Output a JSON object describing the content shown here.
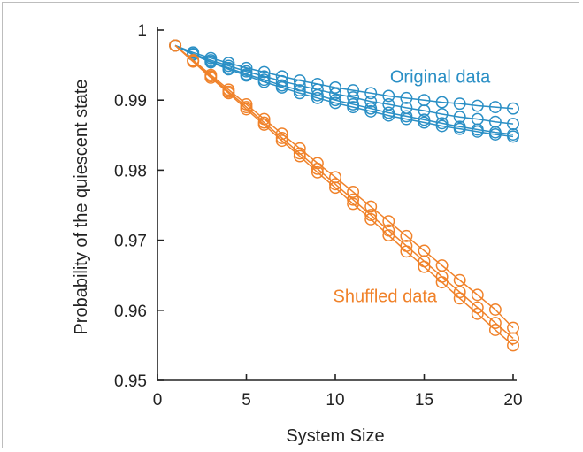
{
  "chart_data": {
    "type": "scatter",
    "title": "",
    "xlabel": "System Size",
    "ylabel": "Probability of the quiescent state",
    "xlim": [
      0,
      20
    ],
    "ylim": [
      0.95,
      1.0
    ],
    "x_ticks": [
      0,
      5,
      10,
      15,
      20
    ],
    "y_ticks": [
      0.95,
      0.96,
      0.97,
      0.98,
      0.99,
      1
    ],
    "y_tick_labels": [
      "0.95",
      "0.96",
      "0.97",
      "0.98",
      "0.99",
      "1"
    ],
    "grid": false,
    "marker": "open-circle",
    "x": [
      1,
      2,
      3,
      4,
      5,
      6,
      7,
      8,
      9,
      10,
      11,
      12,
      13,
      14,
      15,
      16,
      17,
      18,
      19,
      20
    ],
    "groups": [
      {
        "label": "Original data",
        "color": "#2a8fc5",
        "label_pos": [
          15.9,
          0.9925
        ],
        "series": [
          {
            "values": [
              0.9978,
              0.9968,
              0.996,
              0.9953,
              0.9946,
              0.994,
              0.9934,
              0.9928,
              0.9923,
              0.9918,
              0.9914,
              0.991,
              0.9906,
              0.9903,
              0.99,
              0.9897,
              0.9895,
              0.9892,
              0.989,
              0.9888
            ]
          },
          {
            "values": [
              0.9978,
              0.9966,
              0.9957,
              0.9949,
              0.9941,
              0.9934,
              0.9927,
              0.9921,
              0.9915,
              0.9909,
              0.9904,
              0.9898,
              0.9894,
              0.9889,
              0.9885,
              0.988,
              0.9876,
              0.9873,
              0.9869,
              0.9866
            ]
          },
          {
            "values": [
              0.9978,
              0.9965,
              0.9955,
              0.9946,
              0.9937,
              0.9929,
              0.9921,
              0.9914,
              0.9907,
              0.99,
              0.9894,
              0.9888,
              0.9882,
              0.9877,
              0.9872,
              0.9867,
              0.9862,
              0.9858,
              0.9854,
              0.9851
            ]
          },
          {
            "values": [
              0.9978,
              0.9965,
              0.9954,
              0.9944,
              0.9935,
              0.9926,
              0.9918,
              0.991,
              0.9903,
              0.9896,
              0.989,
              0.9884,
              0.9878,
              0.9873,
              0.9868,
              0.9863,
              0.9859,
              0.9855,
              0.9851,
              0.9848
            ]
          }
        ]
      },
      {
        "label": "Shuffled data",
        "color": "#f0822a",
        "label_pos": [
          12.8,
          0.9612
        ],
        "series": [
          {
            "values": [
              0.9978,
              0.9957,
              0.9936,
              0.9915,
              0.9894,
              0.9873,
              0.9852,
              0.9831,
              0.981,
              0.979,
              0.9769,
              0.9748,
              0.9727,
              0.9706,
              0.9685,
              0.9664,
              0.9643,
              0.9622,
              0.9601,
              0.9575
            ]
          },
          {
            "values": [
              0.9978,
              0.9956,
              0.9934,
              0.9912,
              0.989,
              0.9868,
              0.9846,
              0.9824,
              0.9802,
              0.978,
              0.9758,
              0.9736,
              0.9714,
              0.9692,
              0.967,
              0.9648,
              0.9626,
              0.9604,
              0.9582,
              0.956
            ]
          },
          {
            "values": [
              0.9978,
              0.9955,
              0.9932,
              0.991,
              0.9887,
              0.9865,
              0.9842,
              0.982,
              0.9797,
              0.9775,
              0.9752,
              0.973,
              0.9707,
              0.9684,
              0.9662,
              0.964,
              0.9617,
              0.9595,
              0.9572,
              0.955
            ]
          }
        ]
      }
    ]
  }
}
